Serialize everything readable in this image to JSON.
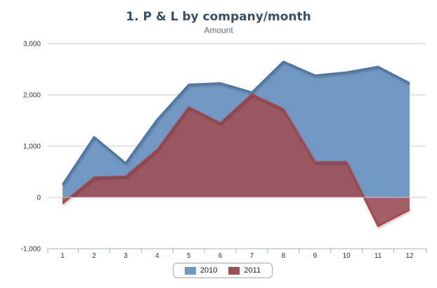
{
  "chart_data": {
    "type": "area",
    "title": "1. P & L by company/month",
    "subtitle": "Amount",
    "categories": [
      "1",
      "2",
      "3",
      "4",
      "5",
      "6",
      "7",
      "8",
      "9",
      "10",
      "11",
      "12"
    ],
    "y_ticks": [
      "-1,000",
      "0",
      "1,000",
      "2,000",
      "3,000"
    ],
    "ylim": [
      -1000,
      3000
    ],
    "grid": true,
    "legend_position": "bottom-center",
    "series": [
      {
        "name": "2010",
        "color": "#4a74ab",
        "fill": "#7098c2",
        "values": [
          250,
          1180,
          670,
          1520,
          2200,
          2230,
          2050,
          2650,
          2380,
          2440,
          2550,
          2230
        ]
      },
      {
        "name": "2011",
        "color": "#a94444",
        "fill": "#9c5159",
        "values": [
          -120,
          390,
          410,
          930,
          1760,
          1450,
          2010,
          1720,
          690,
          690,
          -560,
          -240
        ]
      }
    ]
  }
}
